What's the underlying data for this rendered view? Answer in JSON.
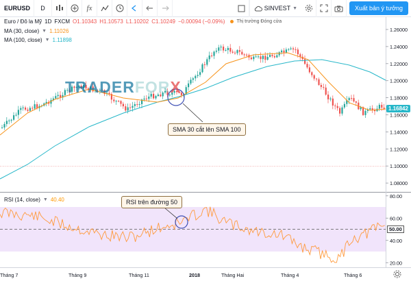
{
  "toolbar": {
    "symbol": "EURUSD",
    "interval": "D",
    "add_glyph": "+",
    "fx_glyph": "fx",
    "search_value": "SINVEST",
    "publish_label": "Xuất bản ý tưởng"
  },
  "legend": {
    "pair_name": "Euro / Đô la Mỹ",
    "timeframe": "1D",
    "exchange": "FXCM",
    "open": "O1.10343",
    "high": "H1.10573",
    "low": "L1.10202",
    "close": "C1.10249",
    "change": "−0.00094 (−0.09%)",
    "session_status": "Thị trường Đóng cửa",
    "ma30_label": "MA (30, close)",
    "ma30_value": "1.11026",
    "ma100_label": "MA (100, close)",
    "ma100_value": "1.11898",
    "rsi_label": "RSI (14, close)",
    "rsi_value": "40.40"
  },
  "colors": {
    "up_candle": "#26a69a",
    "down_candle": "#ef5350",
    "ma30": "#f7931a",
    "ma100": "#27b7c9",
    "rsi_line": "#ff9a3c",
    "rsi_band": "#f1e4fb",
    "accent": "#2196f3"
  },
  "watermark": {
    "part1": "TRADER",
    "part2": "FOR",
    "part3": "X"
  },
  "callouts": {
    "sma_cross": "SMA 30 cắt lên SMA 100",
    "rsi_note": "RSI trên đường 50"
  },
  "price_axis": [
    "1.26000",
    "1.24000",
    "1.22000",
    "1.20000",
    "1.18000",
    "1.16000",
    "1.14000",
    "1.12000",
    "1.10000",
    "1.08000"
  ],
  "current_price": "1.16842",
  "rsi_axis": [
    "80.00",
    "60.00",
    "40.00",
    "20.00"
  ],
  "rsi_level": "50.00",
  "time_axis": [
    "Tháng 7",
    "Tháng 9",
    "Tháng 11",
    "2018",
    "Tháng Hai",
    "Tháng 4",
    "Tháng 6"
  ]
}
